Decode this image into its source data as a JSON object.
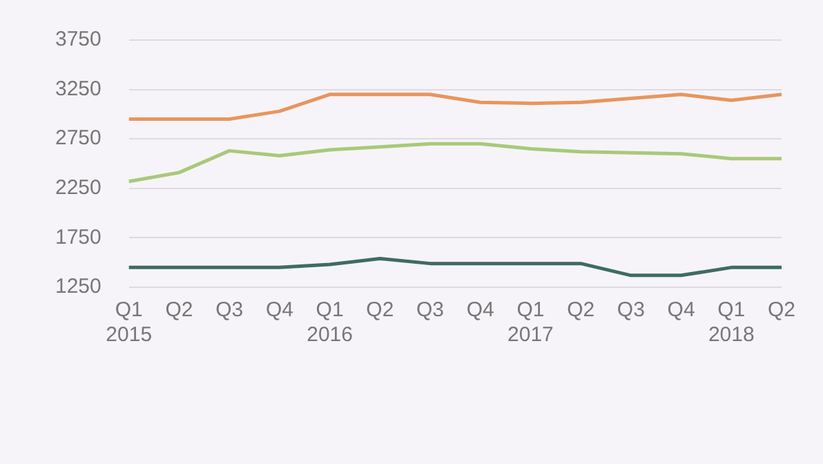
{
  "chart_data": {
    "type": "line",
    "categories": [
      "Q1\n2015",
      "Q2",
      "Q3",
      "Q4",
      "Q1\n2016",
      "Q2",
      "Q3",
      "Q4",
      "Q1\n2017",
      "Q2",
      "Q3",
      "Q4",
      "Q1\n2018",
      "Q2"
    ],
    "series": [
      {
        "color": "#e8955e",
        "values": [
          2950,
          2950,
          2950,
          3030,
          3200,
          3200,
          3200,
          3120,
          3110,
          3120,
          3160,
          3200,
          3140,
          3200
        ]
      },
      {
        "color": "#a8c97a",
        "values": [
          2320,
          2410,
          2630,
          2580,
          2640,
          2670,
          2700,
          2700,
          2650,
          2620,
          2610,
          2600,
          2550,
          2550
        ]
      },
      {
        "color": "#3f6b63",
        "values": [
          1450,
          1450,
          1450,
          1450,
          1480,
          1540,
          1490,
          1490,
          1490,
          1490,
          1370,
          1370,
          1450,
          1450
        ]
      }
    ],
    "ylim": [
      1250,
      3750
    ],
    "yticks": [
      1250,
      1750,
      2250,
      2750,
      3250,
      3750
    ],
    "grid": "y",
    "legend": false,
    "marker": "none",
    "line_style": "solid"
  }
}
